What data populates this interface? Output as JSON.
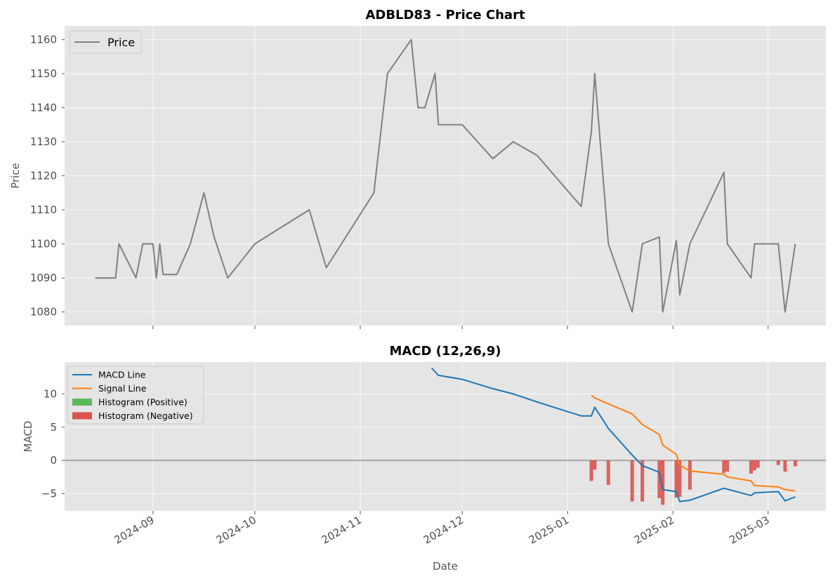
{
  "chart_data": [
    {
      "type": "line",
      "title": "ADBLD83 - Price Chart",
      "xlabel": "",
      "ylabel": "Price",
      "ylim": [
        1076,
        1164
      ],
      "yticks": [
        1080,
        1090,
        1100,
        1110,
        1120,
        1130,
        1140,
        1150,
        1160
      ],
      "xlim": [
        "2024-08-06",
        "2025-03-18"
      ],
      "xticks": [
        "2024-09",
        "2024-10",
        "2024-11",
        "2024-12",
        "2025-01",
        "2025-02",
        "2025-03"
      ],
      "tick_labels_shown": false,
      "grid": true,
      "legend": {
        "position": "top-left",
        "entries": [
          "Price"
        ]
      },
      "colors": {
        "Price": "#808080"
      },
      "series": [
        {
          "name": "Price",
          "x": [
            "2024-08-15",
            "2024-08-21",
            "2024-08-22",
            "2024-08-27",
            "2024-08-29",
            "2024-09-01",
            "2024-09-02",
            "2024-09-03",
            "2024-09-04",
            "2024-09-08",
            "2024-09-12",
            "2024-09-16",
            "2024-09-19",
            "2024-09-23",
            "2024-10-01",
            "2024-10-17",
            "2024-10-22",
            "2024-11-05",
            "2024-11-09",
            "2024-11-16",
            "2024-11-18",
            "2024-11-20",
            "2024-11-23",
            "2024-11-24",
            "2024-12-01",
            "2024-12-10",
            "2024-12-16",
            "2024-12-23",
            "2025-01-05",
            "2025-01-08",
            "2025-01-09",
            "2025-01-13",
            "2025-01-20",
            "2025-01-23",
            "2025-01-28",
            "2025-01-29",
            "2025-02-02",
            "2025-02-03",
            "2025-02-06",
            "2025-02-16",
            "2025-02-17",
            "2025-02-24",
            "2025-02-25",
            "2025-03-04",
            "2025-03-06",
            "2025-03-09"
          ],
          "values": [
            1090,
            1090,
            1100,
            1090,
            1100,
            1100,
            1090,
            1100,
            1091,
            1091,
            1100,
            1115,
            1102,
            1090,
            1100,
            1110,
            1093,
            1115,
            1150,
            1160,
            1140,
            1140,
            1150,
            1135,
            1135,
            1125,
            1130,
            1126,
            1111,
            1133,
            1150,
            1100,
            1080,
            1100,
            1102,
            1080,
            1101,
            1085,
            1100,
            1121,
            1100,
            1090,
            1100,
            1100,
            1080,
            1100
          ]
        }
      ]
    },
    {
      "type": "line",
      "title": "MACD (12,26,9)",
      "xlabel": "Date",
      "ylabel": "MACD",
      "ylim": [
        -7.6,
        14.8
      ],
      "yticks": [
        -5,
        0,
        5,
        10
      ],
      "xlim": [
        "2024-08-06",
        "2025-03-18"
      ],
      "xticks": [
        "2024-09",
        "2024-10",
        "2024-11",
        "2024-12",
        "2025-01",
        "2025-02",
        "2025-03"
      ],
      "grid": true,
      "zero_line": 0,
      "legend": {
        "position": "top-left",
        "entries": [
          "MACD Line",
          "Signal Line",
          "Histogram (Positive)",
          "Histogram (Negative)"
        ]
      },
      "colors": {
        "MACD Line": "#1f77b4",
        "Signal Line": "#ff7f0e",
        "Histogram (Positive)": "#5cb85c",
        "Histogram (Negative)": "#d9534f"
      },
      "series": [
        {
          "name": "MACD Line",
          "x": [
            "2024-11-22",
            "2024-11-24",
            "2024-12-01",
            "2024-12-10",
            "2024-12-16",
            "2024-12-23",
            "2025-01-05",
            "2025-01-08",
            "2025-01-09",
            "2025-01-13",
            "2025-01-20",
            "2025-01-23",
            "2025-01-28",
            "2025-01-29",
            "2025-02-02",
            "2025-02-03",
            "2025-02-06",
            "2025-02-16",
            "2025-02-24",
            "2025-02-25",
            "2025-03-04",
            "2025-03-06",
            "2025-03-09"
          ],
          "values": [
            13.9,
            12.8,
            12.2,
            10.8,
            10.0,
            8.8,
            6.7,
            6.7,
            8.0,
            4.8,
            0.8,
            -0.8,
            -1.8,
            -4.4,
            -4.7,
            -6.2,
            -6.0,
            -4.2,
            -5.3,
            -4.9,
            -4.7,
            -6.1,
            -5.5
          ]
        },
        {
          "name": "Signal Line",
          "x": [
            "2025-01-08",
            "2025-01-09",
            "2025-01-13",
            "2025-01-20",
            "2025-01-23",
            "2025-01-28",
            "2025-01-29",
            "2025-02-02",
            "2025-02-03",
            "2025-02-06",
            "2025-02-16",
            "2025-02-17",
            "2025-02-24",
            "2025-02-25",
            "2025-03-04",
            "2025-03-06",
            "2025-03-09"
          ],
          "values": [
            9.8,
            9.4,
            8.5,
            7.0,
            5.4,
            3.9,
            2.3,
            0.9,
            -0.7,
            -1.6,
            -2.1,
            -2.5,
            -3.1,
            -3.8,
            -4.0,
            -4.4,
            -4.6
          ]
        },
        {
          "name": "Histogram (Negative)",
          "kind": "bar",
          "x": [
            "2025-01-08",
            "2025-01-09",
            "2025-01-13",
            "2025-01-20",
            "2025-01-23",
            "2025-01-28",
            "2025-01-29",
            "2025-02-02",
            "2025-02-03",
            "2025-02-06",
            "2025-02-16",
            "2025-02-17",
            "2025-02-24",
            "2025-02-25",
            "2025-02-26",
            "2025-03-04",
            "2025-03-06",
            "2025-03-09"
          ],
          "values": [
            -3.1,
            -1.4,
            -3.7,
            -6.2,
            -6.2,
            -5.7,
            -6.7,
            -5.6,
            -5.5,
            -4.4,
            -1.9,
            -1.7,
            -2.0,
            -1.5,
            -1.1,
            -0.7,
            -1.7,
            -0.9
          ]
        }
      ]
    }
  ]
}
